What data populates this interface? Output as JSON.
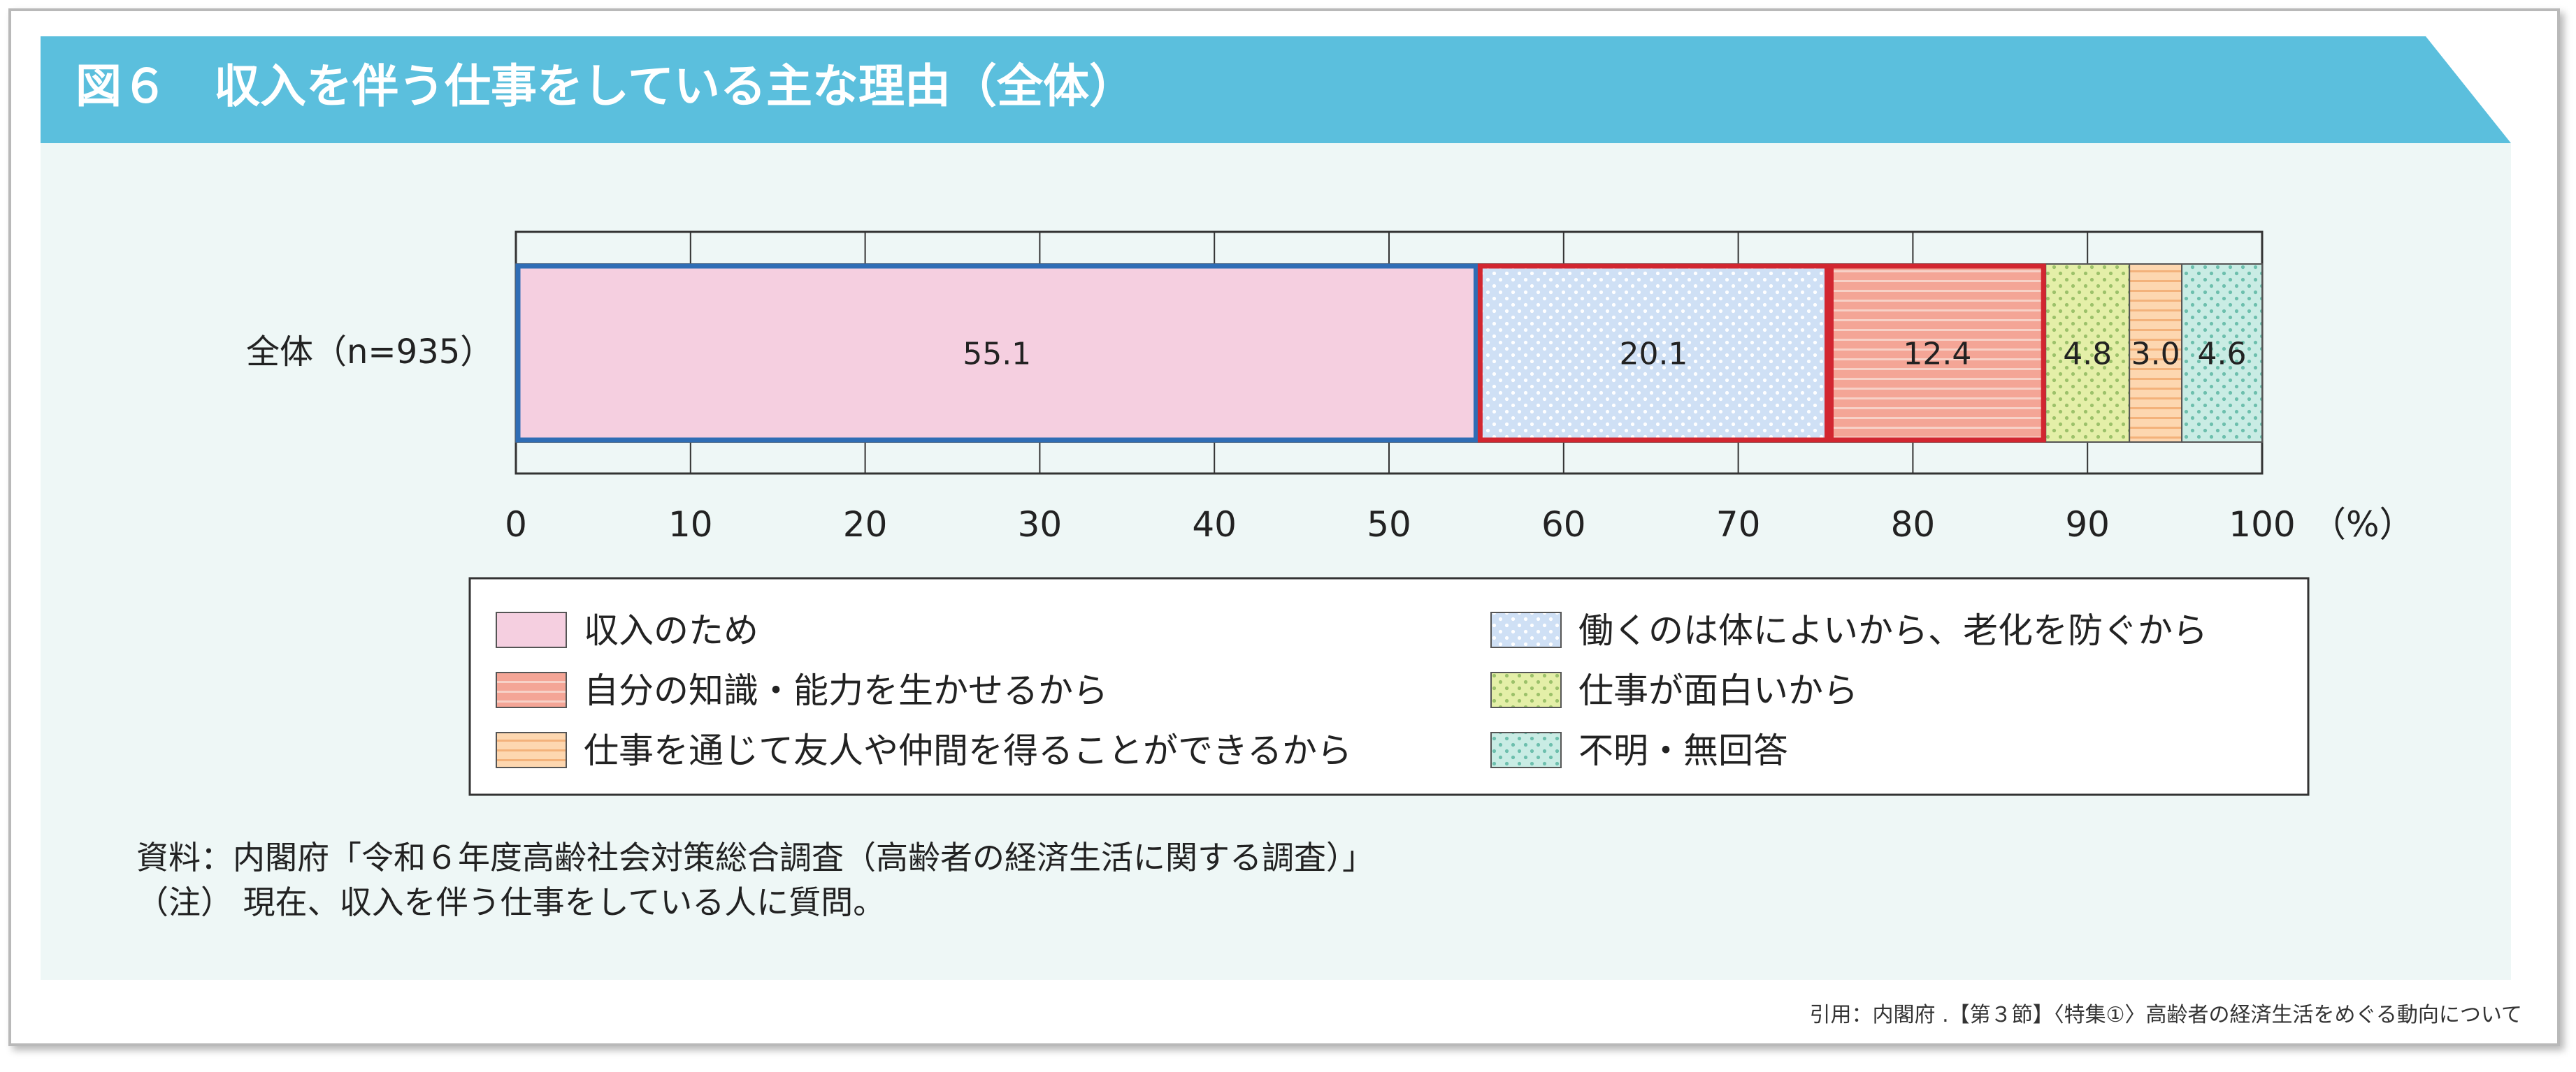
{
  "chart_data": {
    "type": "bar",
    "orientation": "horizontal",
    "stacked": true,
    "title": "図６　収入を伴う仕事をしている主な理由（全体）",
    "categories": [
      "全体（n=935）"
    ],
    "series": [
      {
        "name": "収入のため",
        "values": [
          55.1
        ],
        "color": "#f5cfe0",
        "border": "#2f6db5",
        "pattern": "solid"
      },
      {
        "name": "働くのは体によいから、老化を防ぐから",
        "values": [
          20.1
        ],
        "color": "#cfe0f5",
        "border": "#d22630",
        "pattern": "dots"
      },
      {
        "name": "自分の知識・能力を生かせるから",
        "values": [
          12.4
        ],
        "color": "#f4a596",
        "border": "#d22630",
        "pattern": "hstripes"
      },
      {
        "name": "仕事が面白いから",
        "values": [
          4.8
        ],
        "color": "#e4efa8",
        "border": "#555555",
        "pattern": "dots"
      },
      {
        "name": "仕事を通じて友人や仲間を得ることができるから",
        "values": [
          3.0
        ],
        "color": "#fdd7b0",
        "border": "#555555",
        "pattern": "vstripes"
      },
      {
        "name": "不明・無回答",
        "values": [
          4.6
        ],
        "color": "#c9ece4",
        "border": "#555555",
        "pattern": "dots"
      }
    ],
    "data_labels": [
      "55.1",
      "20.1",
      "12.4",
      "4.8",
      "3.0",
      "4.6"
    ],
    "xlim": [
      0,
      100
    ],
    "x_ticks": [
      0,
      10,
      20,
      30,
      40,
      50,
      60,
      70,
      80,
      90,
      100
    ],
    "x_tick_labels": [
      "0",
      "10",
      "20",
      "30",
      "40",
      "50",
      "60",
      "70",
      "80",
      "90",
      "100"
    ],
    "x_unit": "（%）",
    "grid": true,
    "legend": {
      "placement": "bottom",
      "columns": 2,
      "order": [
        0,
        1,
        2,
        3,
        4,
        5
      ],
      "left_column": [
        0,
        2,
        4
      ],
      "right_column": [
        1,
        3,
        5
      ]
    }
  },
  "notes": {
    "source": "資料：内閣府「令和６年度高齢社会対策総合調査（高齢者の経済生活に関する調査）」",
    "note": "（注） 現在、収入を伴う仕事をしている人に質問。"
  },
  "citation": "引用：内閣府 .【第３節】〈特集①〉高齢者の経済生活をめぐる動向について",
  "colors": {
    "header": "#5bbfdd",
    "panel": "#eef7f6",
    "frame": "#b9b9b9"
  }
}
